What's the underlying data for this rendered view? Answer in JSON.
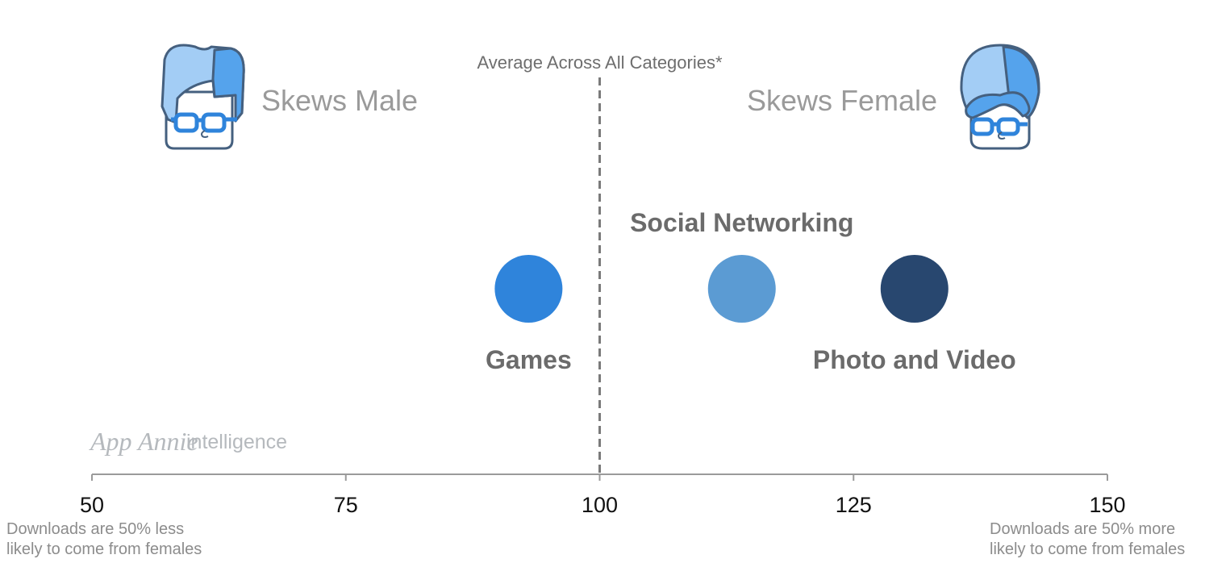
{
  "chart_data": {
    "type": "scatter",
    "x_range": [
      50,
      150
    ],
    "x_ticks": [
      50,
      75,
      100,
      125,
      150
    ],
    "reference_line": {
      "x": 100,
      "label": "Average Across All Categories*"
    },
    "points": [
      {
        "name": "Games",
        "x": 93,
        "color": "#2f84db",
        "label_position": "below"
      },
      {
        "name": "Social Networking",
        "x": 114,
        "color": "#5b9bd3",
        "label_position": "above"
      },
      {
        "name": "Photo and Video",
        "x": 131,
        "color": "#28476f",
        "label_position": "below"
      }
    ],
    "left_skew_label": "Skews Male",
    "right_skew_label": "Skews Female",
    "left_note": [
      "Downloads are 50% less",
      "likely to come from females"
    ],
    "right_note": [
      "Downloads are 50% more",
      "likely to come from females"
    ],
    "grid": false,
    "legend": "none"
  },
  "brand": {
    "name": "App Annie",
    "suffix": "intelligence"
  },
  "icons": {
    "left": "male-avatar-icon",
    "right": "female-avatar-icon"
  },
  "colors": {
    "axis": "#9a9a9a",
    "reference_line": "#7a7a7a",
    "avatar_light": "#a3cdf5",
    "avatar_dark": "#55a3ec",
    "avatar_outline": "#45607f"
  }
}
